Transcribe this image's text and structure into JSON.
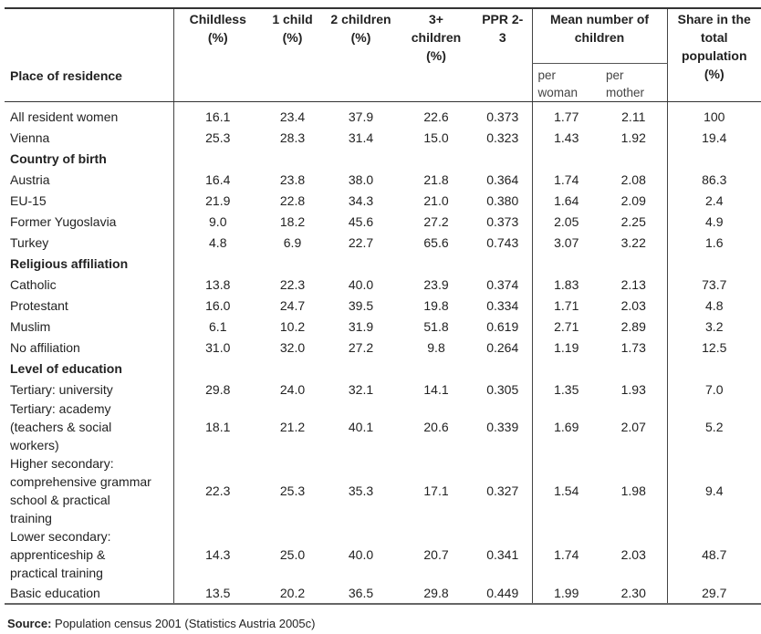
{
  "table": {
    "headers": {
      "label": "Place of residence",
      "childless": "Childless\n(%)",
      "one_child": "1 child\n(%)",
      "two_children": "2 children\n(%)",
      "three_plus": "3+\nchildren\n(%)",
      "ppr": "PPR 2-\n3",
      "mean": "Mean number of\nchildren",
      "per_woman": "per\nwoman",
      "per_mother": "per\nmother",
      "share": "Share in the\ntotal\npopulation\n(%)"
    },
    "rows": [
      {
        "label": "All resident women",
        "values": [
          "16.1",
          "23.4",
          "37.9",
          "22.6",
          "0.373",
          "1.77",
          "2.11",
          "100"
        ]
      },
      {
        "label": "Vienna",
        "values": [
          "25.3",
          "28.3",
          "31.4",
          "15.0",
          "0.323",
          "1.43",
          "1.92",
          "19.4"
        ]
      },
      {
        "section": "Country of birth"
      },
      {
        "label": "Austria",
        "values": [
          "16.4",
          "23.8",
          "38.0",
          "21.8",
          "0.364",
          "1.74",
          "2.08",
          "86.3"
        ]
      },
      {
        "label": "EU-15",
        "values": [
          "21.9",
          "22.8",
          "34.3",
          "21.0",
          "0.380",
          "1.64",
          "2.09",
          "2.4"
        ]
      },
      {
        "label": "Former Yugoslavia",
        "values": [
          "9.0",
          "18.2",
          "45.6",
          "27.2",
          "0.373",
          "2.05",
          "2.25",
          "4.9"
        ]
      },
      {
        "label": "Turkey",
        "values": [
          "4.8",
          "6.9",
          "22.7",
          "65.6",
          "0.743",
          "3.07",
          "3.22",
          "1.6"
        ]
      },
      {
        "section": "Religious affiliation"
      },
      {
        "label": "Catholic",
        "values": [
          "13.8",
          "22.3",
          "40.0",
          "23.9",
          "0.374",
          "1.83",
          "2.13",
          "73.7"
        ]
      },
      {
        "label": "Protestant",
        "values": [
          "16.0",
          "24.7",
          "39.5",
          "19.8",
          "0.334",
          "1.71",
          "2.03",
          "4.8"
        ]
      },
      {
        "label": "Muslim",
        "values": [
          "6.1",
          "10.2",
          "31.9",
          "51.8",
          "0.619",
          "2.71",
          "2.89",
          "3.2"
        ]
      },
      {
        "label": "No affiliation",
        "values": [
          "31.0",
          "32.0",
          "27.2",
          "9.8",
          "0.264",
          "1.19",
          "1.73",
          "12.5"
        ]
      },
      {
        "section": "Level of education"
      },
      {
        "label": "Tertiary: university",
        "values": [
          "29.8",
          "24.0",
          "32.1",
          "14.1",
          "0.305",
          "1.35",
          "1.93",
          "7.0"
        ]
      },
      {
        "label": "Tertiary: academy\n(teachers & social\nworkers)",
        "values": [
          "18.1",
          "21.2",
          "40.1",
          "20.6",
          "0.339",
          "1.69",
          "2.07",
          "5.2"
        ]
      },
      {
        "label": "Higher secondary:\ncomprehensive grammar\nschool & practical\ntraining",
        "values": [
          "22.3",
          "25.3",
          "35.3",
          "17.1",
          "0.327",
          "1.54",
          "1.98",
          "9.4"
        ]
      },
      {
        "label": "Lower secondary:\napprenticeship &\npractical training",
        "values": [
          "14.3",
          "25.0",
          "40.0",
          "20.7",
          "0.341",
          "1.74",
          "2.03",
          "48.7"
        ]
      },
      {
        "label": "Basic education",
        "values": [
          "13.5",
          "20.2",
          "36.5",
          "29.8",
          "0.449",
          "1.99",
          "2.30",
          "29.7"
        ]
      }
    ]
  },
  "source": {
    "prefix": "Source:",
    "text": " Population census 2001 (Statistics Austria 2005c)"
  }
}
